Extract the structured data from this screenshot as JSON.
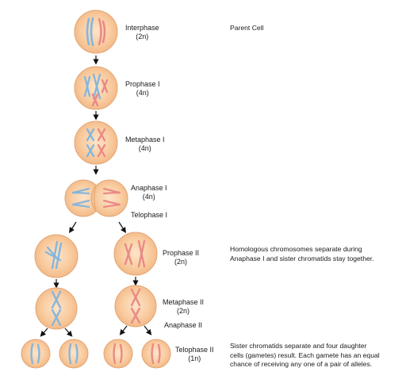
{
  "title_note": "Parent Cell",
  "stages": {
    "interphase": {
      "name": "Interphase",
      "ploidy": "(2n)"
    },
    "prophase1": {
      "name": "Prophase I",
      "ploidy": "(4n)"
    },
    "metaphase1": {
      "name": "Metaphase I",
      "ploidy": "(4n)"
    },
    "anaphase1": {
      "name": "Anaphase I",
      "ploidy": "(4n)"
    },
    "telophase1": {
      "name": "Telophase I"
    },
    "prophase2": {
      "name": "Prophase II",
      "ploidy": "(2n)"
    },
    "metaphase2": {
      "name": "Metaphase II",
      "ploidy": "(2n)"
    },
    "anaphase2": {
      "name": "Anaphase II"
    },
    "telophase2": {
      "name": "Telophase II",
      "ploidy": "(1n)"
    }
  },
  "notes": {
    "homologous": [
      "Homologous chromosomes separate during",
      "Anaphase I and sister chromatids stay together."
    ],
    "sister": [
      "Sister chromatids separate and four daughter",
      "cells (gametes) result. Each gamete has an equal",
      "chance of receiving any one of a pair of alleles."
    ]
  },
  "colors": {
    "cell_fill": "#f8c89a",
    "cell_edge": "#e0a070",
    "cell_center": "#fde0c0",
    "chromosome_blue": "#86b6dc",
    "chromosome_red": "#ea8a86",
    "arrow": "#111111"
  }
}
